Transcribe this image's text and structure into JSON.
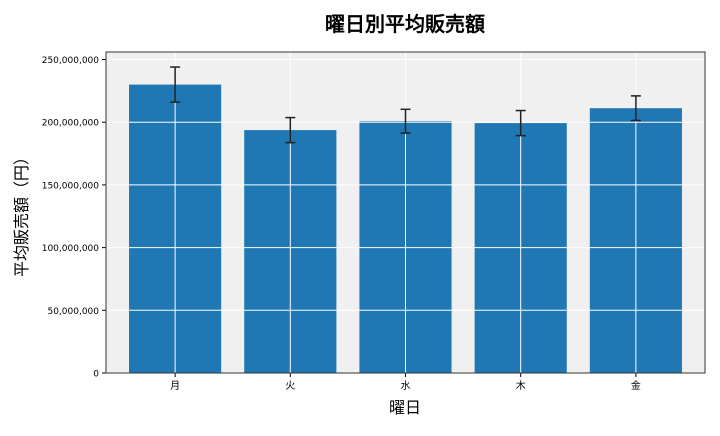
{
  "chart_data": {
    "type": "bar",
    "title": "曜日別平均販売額",
    "xlabel": "曜日",
    "ylabel": "平均販売額（円）",
    "categories": [
      "月",
      "火",
      "水",
      "木",
      "金"
    ],
    "values": [
      230000000,
      193700000,
      200800000,
      199300000,
      211200000
    ],
    "errors": [
      14000000,
      10000000,
      9500000,
      10000000,
      9800000
    ],
    "ylim": [
      0,
      256000000
    ],
    "yticks": [
      0,
      50000000,
      100000000,
      150000000,
      200000000,
      250000000
    ],
    "ytick_labels": [
      "0",
      "50,000,000",
      "100,000,000",
      "150,000,000",
      "200,000,000",
      "250,000,000"
    ],
    "grid": true,
    "colors": {
      "bar": "#1f77b4",
      "background": "#f0f0f0",
      "grid": "#ffffff",
      "error": "#000000"
    }
  }
}
